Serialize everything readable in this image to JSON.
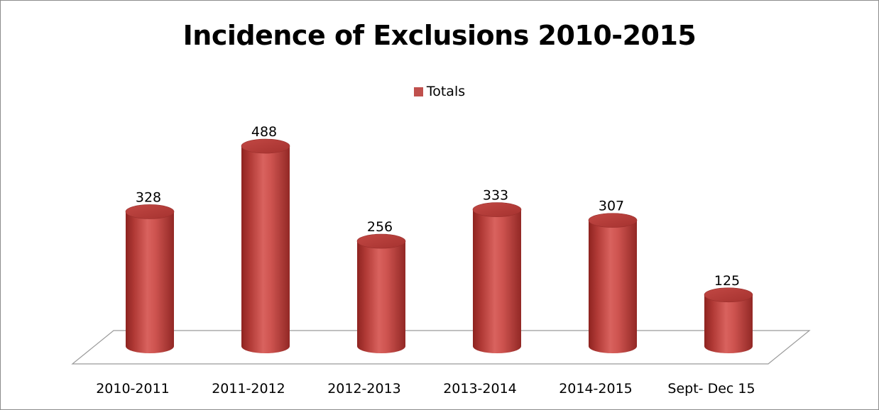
{
  "chart_data": {
    "type": "bar",
    "title": "Incidence of Exclusions 2010-2015",
    "categories": [
      "2010-2011",
      "2011-2012",
      "2012-2013",
      "2013-2014",
      "2014-2015",
      "Sept- Dec 15"
    ],
    "series": [
      {
        "name": "Totals",
        "values": [
          328,
          488,
          256,
          333,
          307,
          125
        ]
      }
    ],
    "legend_position": "top",
    "data_labels": true,
    "grid": false,
    "style": "3d-cylinder",
    "bar_color": "#c0504d"
  }
}
